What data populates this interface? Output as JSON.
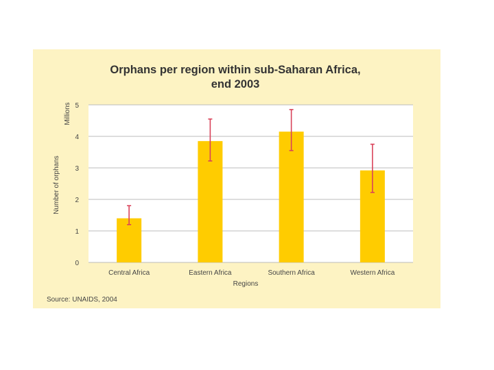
{
  "chart_data": {
    "type": "bar",
    "title": "Orphans per region within sub-Saharan Africa,",
    "subtitle": "end 2003",
    "xlabel": "Regions",
    "ylabel": "Number of orphans",
    "yunit": "Millions",
    "categories": [
      "Central Africa",
      "Eastern Africa",
      "Southern Africa",
      "Western Africa"
    ],
    "values": [
      1.4,
      3.85,
      4.15,
      2.92
    ],
    "error_low": [
      1.2,
      3.22,
      3.55,
      2.22
    ],
    "error_high": [
      1.8,
      4.55,
      4.85,
      3.75
    ],
    "yticks": [
      "0",
      "1",
      "2",
      "3",
      "4",
      "5"
    ],
    "ylim": [
      0,
      5
    ],
    "grid": true,
    "source": "Source: UNAIDS, 2004",
    "colors": {
      "panel": "#fdf3c3",
      "plot_background": "#ffffff",
      "bar": "#ffcc00",
      "error_bar": "#d9435a",
      "grid": "#bbbbbb"
    }
  }
}
